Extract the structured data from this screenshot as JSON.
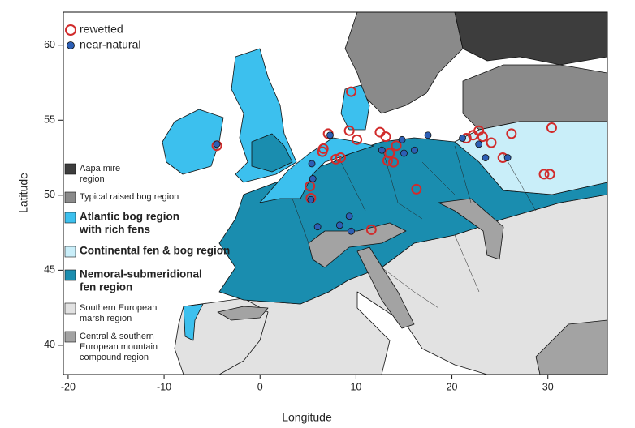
{
  "map": {
    "xlabel": "Longitude",
    "ylabel": "Latitude",
    "xlim": [
      -20.5,
      36.2
    ],
    "ylim": [
      38.05,
      62.2
    ],
    "xticks": [
      -20,
      -10,
      0,
      10,
      20,
      30
    ],
    "yticks": [
      40,
      45,
      50,
      55,
      60
    ],
    "legend": [
      {
        "name": "rewetted",
        "color": "#d12b2b",
        "style": "ring"
      },
      {
        "name": "near-natural",
        "color": "#2d5fb5",
        "style": "dot"
      }
    ],
    "regions": [
      {
        "lines": [
          "Aapa mire",
          "region"
        ],
        "color": "#3d3d3d",
        "bold": false
      },
      {
        "lines": [
          "Typical raised bog region"
        ],
        "color": "#8a8a8a",
        "bold": false
      },
      {
        "lines": [
          "Atlantic bog region",
          "with rich fens"
        ],
        "color": "#3cc0ee",
        "bold": true
      },
      {
        "lines": [
          "Continental fen & bog region"
        ],
        "color": "#c9eef9",
        "bold": true
      },
      {
        "lines": [
          "Nemoral-submeridional",
          "fen region"
        ],
        "color": "#1a8daf",
        "bold": true
      },
      {
        "lines": [
          "Southern European",
          "marsh region"
        ],
        "color": "#e2e2e2",
        "bold": false
      },
      {
        "lines": [
          "Central & southern",
          "European mountain",
          "compound region"
        ],
        "color": "#a3a3a3",
        "bold": false
      }
    ],
    "sites": {
      "rewetted": {
        "lon": [
          -4.5,
          6.6,
          6.5,
          7.9,
          8.4,
          7.1,
          9.3,
          10.1,
          12.5,
          13.1,
          13.5,
          13.9,
          13.3,
          14.2,
          11.6,
          16.3,
          5.2,
          5.3,
          21.5,
          22.2,
          22.8,
          23.2,
          24.1,
          25.3,
          26.2,
          30.4,
          29.6,
          30.2,
          9.5
        ],
        "lat": [
          53.3,
          53.1,
          52.9,
          52.4,
          52.5,
          54.1,
          54.3,
          53.7,
          54.2,
          53.9,
          52.8,
          52.2,
          52.3,
          53.3,
          47.7,
          50.4,
          50.6,
          49.8,
          53.8,
          54.0,
          54.3,
          53.9,
          53.5,
          52.5,
          54.1,
          54.5,
          51.4,
          51.4,
          56.9
        ]
      },
      "near_natural": {
        "lon": [
          -4.5,
          5.4,
          5.5,
          5.3,
          6.0,
          8.3,
          9.3,
          9.5,
          12.7,
          14.8,
          16.1,
          17.5,
          15.0,
          21.1,
          22.8,
          23.5,
          25.8,
          7.3
        ],
        "lat": [
          53.4,
          52.1,
          51.1,
          49.7,
          47.9,
          48.0,
          48.6,
          47.6,
          53.0,
          53.7,
          53.0,
          54.0,
          52.8,
          53.8,
          53.4,
          52.5,
          52.5,
          54.0
        ]
      }
    }
  }
}
